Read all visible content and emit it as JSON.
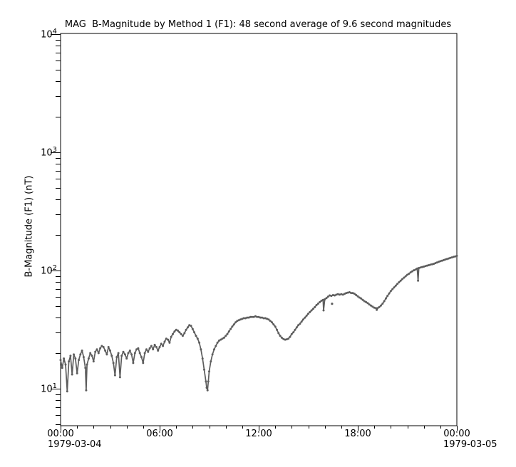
{
  "title": "MAG  B-Magnitude by Method 1 (F1): 48 second average of 9.6 second magnitudes",
  "y_axis": {
    "label": "B-Magnitude (F1) (nT)",
    "ticks": [
      {
        "base": "10",
        "exp": "4"
      },
      {
        "base": "10",
        "exp": "3"
      },
      {
        "base": "10",
        "exp": "2"
      },
      {
        "base": "10",
        "exp": "1"
      }
    ]
  },
  "x_axis": {
    "ticks": [
      "00:00",
      "06:00",
      "12:00",
      "18:00",
      "00:00"
    ],
    "date_left": "1979-03-04",
    "date_right": "1979-03-05"
  },
  "colors": {
    "series": "#5d5d5d",
    "axis": "#000000",
    "background": "#ffffff",
    "text": "#000000"
  },
  "chart_data": {
    "type": "line",
    "title": "MAG  B-Magnitude by Method 1 (F1): 48 second average of 9.6 second magnitudes",
    "ylabel": "B-Magnitude (F1) (nT)",
    "yscale": "log",
    "x_unit": "hours from 1979-03-04 00:00 UT",
    "xlim": [
      0,
      24
    ],
    "ylim": [
      4.9,
      10000
    ],
    "x_major_ticks_hours": [
      0,
      6,
      12,
      18,
      24
    ],
    "x_minor_tick_interval_hours": 1,
    "x_tick_labels": [
      "00:00",
      "06:00",
      "12:00",
      "18:00",
      "00:00"
    ],
    "y_major_ticks": [
      10,
      100,
      1000,
      10000
    ],
    "grid": false,
    "legend": false,
    "marker": "dot",
    "series": [
      {
        "name": "B-Magnitude (F1)",
        "points": [
          [
            0.0,
            17.5
          ],
          [
            0.1,
            15
          ],
          [
            0.2,
            18
          ],
          [
            0.3,
            16
          ],
          [
            0.4,
            9.5
          ],
          [
            0.5,
            17
          ],
          [
            0.6,
            19
          ],
          [
            0.7,
            13.2
          ],
          [
            0.8,
            19.5
          ],
          [
            0.9,
            18
          ],
          [
            1.0,
            13.5
          ],
          [
            1.1,
            17.5
          ],
          [
            1.2,
            19.5
          ],
          [
            1.3,
            21
          ],
          [
            1.4,
            18.5
          ],
          [
            1.5,
            15
          ],
          [
            1.55,
            9.7
          ],
          [
            1.6,
            16
          ],
          [
            1.7,
            18
          ],
          [
            1.8,
            20
          ],
          [
            1.9,
            19
          ],
          [
            2.0,
            17
          ],
          [
            2.1,
            20.5
          ],
          [
            2.2,
            21.5
          ],
          [
            2.3,
            20
          ],
          [
            2.4,
            22
          ],
          [
            2.5,
            23
          ],
          [
            2.6,
            22.5
          ],
          [
            2.7,
            21
          ],
          [
            2.8,
            19.5
          ],
          [
            2.9,
            22.5
          ],
          [
            3.0,
            21
          ],
          [
            3.1,
            19
          ],
          [
            3.2,
            16.5
          ],
          [
            3.3,
            13
          ],
          [
            3.4,
            18.5
          ],
          [
            3.5,
            20
          ],
          [
            3.6,
            12.5
          ],
          [
            3.7,
            19
          ],
          [
            3.8,
            20.5
          ],
          [
            3.9,
            19.5
          ],
          [
            4.0,
            18
          ],
          [
            4.1,
            20
          ],
          [
            4.2,
            21
          ],
          [
            4.3,
            19.5
          ],
          [
            4.4,
            16.5
          ],
          [
            4.5,
            20
          ],
          [
            4.6,
            21.5
          ],
          [
            4.7,
            22
          ],
          [
            4.8,
            20
          ],
          [
            4.9,
            18.5
          ],
          [
            5.0,
            16.5
          ],
          [
            5.1,
            20
          ],
          [
            5.2,
            21.5
          ],
          [
            5.3,
            20.5
          ],
          [
            5.4,
            22
          ],
          [
            5.5,
            23
          ],
          [
            5.6,
            21.5
          ],
          [
            5.7,
            23.5
          ],
          [
            5.8,
            22.5
          ],
          [
            5.9,
            21
          ],
          [
            6.0,
            22.5
          ],
          [
            6.1,
            24
          ],
          [
            6.2,
            23
          ],
          [
            6.3,
            25
          ],
          [
            6.4,
            26.5
          ],
          [
            6.5,
            26
          ],
          [
            6.6,
            24.5
          ],
          [
            6.7,
            27.5
          ],
          [
            6.8,
            29
          ],
          [
            6.9,
            30.5
          ],
          [
            7.0,
            31.5
          ],
          [
            7.1,
            31
          ],
          [
            7.2,
            30
          ],
          [
            7.3,
            29
          ],
          [
            7.4,
            28
          ],
          [
            7.5,
            29.5
          ],
          [
            7.6,
            31.5
          ],
          [
            7.7,
            33
          ],
          [
            7.8,
            34.5
          ],
          [
            7.9,
            34
          ],
          [
            8.0,
            32
          ],
          [
            8.1,
            30
          ],
          [
            8.2,
            28
          ],
          [
            8.3,
            26.5
          ],
          [
            8.4,
            24.5
          ],
          [
            8.5,
            21.5
          ],
          [
            8.6,
            18
          ],
          [
            8.7,
            14.5
          ],
          [
            8.8,
            11.5
          ],
          [
            8.85,
            10.2
          ],
          [
            8.9,
            9.7
          ],
          [
            8.95,
            11.5
          ],
          [
            9.0,
            14
          ],
          [
            9.1,
            17
          ],
          [
            9.2,
            19.5
          ],
          [
            9.3,
            21.5
          ],
          [
            9.4,
            23
          ],
          [
            9.5,
            24.5
          ],
          [
            9.6,
            25.5
          ],
          [
            9.7,
            26
          ],
          [
            9.8,
            26.5
          ],
          [
            9.9,
            27
          ],
          [
            10.0,
            28
          ],
          [
            10.1,
            29
          ],
          [
            10.2,
            30.5
          ],
          [
            10.3,
            32
          ],
          [
            10.4,
            33.5
          ],
          [
            10.5,
            35
          ],
          [
            10.6,
            36.5
          ],
          [
            10.7,
            37.5
          ],
          [
            10.8,
            38
          ],
          [
            10.9,
            38.5
          ],
          [
            11.0,
            39
          ],
          [
            11.1,
            39.5
          ],
          [
            11.2,
            39.5
          ],
          [
            11.3,
            40
          ],
          [
            11.4,
            40
          ],
          [
            11.5,
            40.5
          ],
          [
            11.6,
            40.5
          ],
          [
            11.7,
            40.5
          ],
          [
            11.8,
            41
          ],
          [
            11.9,
            40.5
          ],
          [
            12.0,
            40.5
          ],
          [
            12.1,
            40
          ],
          [
            12.2,
            40
          ],
          [
            12.3,
            39.5
          ],
          [
            12.4,
            39.5
          ],
          [
            12.5,
            39
          ],
          [
            12.6,
            38.5
          ],
          [
            12.7,
            37.5
          ],
          [
            12.8,
            36.5
          ],
          [
            12.9,
            35
          ],
          [
            13.0,
            33.5
          ],
          [
            13.1,
            31.5
          ],
          [
            13.2,
            29.5
          ],
          [
            13.3,
            28
          ],
          [
            13.4,
            27
          ],
          [
            13.5,
            26.3
          ],
          [
            13.6,
            26
          ],
          [
            13.7,
            26.2
          ],
          [
            13.8,
            26.5
          ],
          [
            13.9,
            27.5
          ],
          [
            14.0,
            29
          ],
          [
            14.1,
            30
          ],
          [
            14.2,
            31.5
          ],
          [
            14.3,
            33
          ],
          [
            14.4,
            34.5
          ],
          [
            14.5,
            35.5
          ],
          [
            14.6,
            37
          ],
          [
            14.7,
            38.5
          ],
          [
            14.8,
            40
          ],
          [
            14.9,
            41.5
          ],
          [
            15.0,
            43
          ],
          [
            15.1,
            44.5
          ],
          [
            15.2,
            46
          ],
          [
            15.3,
            47.5
          ],
          [
            15.4,
            49
          ],
          [
            15.5,
            51
          ],
          [
            15.6,
            52.5
          ],
          [
            15.7,
            54
          ],
          [
            15.8,
            55.5
          ],
          [
            15.9,
            56.5
          ],
          [
            15.93,
            46
          ],
          [
            16.0,
            57
          ],
          [
            16.1,
            58.5
          ],
          [
            16.2,
            60
          ],
          [
            16.3,
            61.5
          ],
          [
            16.4,
            61
          ],
          [
            16.5,
            62
          ],
          [
            16.6,
            61.5
          ],
          [
            16.7,
            62.5
          ],
          [
            16.8,
            63
          ],
          [
            16.9,
            62.5
          ],
          [
            17.0,
            63
          ],
          [
            17.1,
            62.5
          ],
          [
            17.2,
            63.5
          ],
          [
            17.3,
            64.5
          ],
          [
            17.4,
            65
          ],
          [
            17.5,
            65.5
          ],
          [
            17.6,
            64.5
          ],
          [
            17.7,
            64.5
          ],
          [
            17.8,
            63.5
          ],
          [
            17.9,
            62
          ],
          [
            18.0,
            60.5
          ],
          [
            18.1,
            59
          ],
          [
            18.2,
            58
          ],
          [
            18.3,
            56.5
          ],
          [
            18.4,
            55
          ],
          [
            18.5,
            54
          ],
          [
            18.6,
            53
          ],
          [
            18.7,
            51.5
          ],
          [
            18.8,
            50.5
          ],
          [
            18.9,
            49.5
          ],
          [
            19.0,
            48.5
          ],
          [
            19.1,
            48
          ],
          [
            19.15,
            46.5
          ],
          [
            19.2,
            48
          ],
          [
            19.3,
            49
          ],
          [
            19.4,
            50.5
          ],
          [
            19.5,
            52.5
          ],
          [
            19.6,
            55
          ],
          [
            19.7,
            58
          ],
          [
            19.8,
            61
          ],
          [
            19.9,
            64
          ],
          [
            20.0,
            67
          ],
          [
            20.1,
            69.5
          ],
          [
            20.2,
            72
          ],
          [
            20.3,
            74.5
          ],
          [
            20.4,
            77
          ],
          [
            20.5,
            79.5
          ],
          [
            20.6,
            82
          ],
          [
            20.7,
            84.5
          ],
          [
            20.8,
            87
          ],
          [
            20.9,
            89.5
          ],
          [
            21.0,
            92
          ],
          [
            21.1,
            94
          ],
          [
            21.2,
            96.5
          ],
          [
            21.3,
            98.5
          ],
          [
            21.4,
            100.5
          ],
          [
            21.5,
            102
          ],
          [
            21.6,
            104
          ],
          [
            21.65,
            82
          ],
          [
            21.7,
            105
          ],
          [
            21.8,
            106
          ],
          [
            21.9,
            107
          ],
          [
            22.0,
            108
          ],
          [
            22.1,
            109
          ],
          [
            22.2,
            110
          ],
          [
            22.3,
            111
          ],
          [
            22.4,
            112
          ],
          [
            22.5,
            113
          ],
          [
            22.6,
            114
          ],
          [
            22.7,
            115.5
          ],
          [
            22.8,
            117
          ],
          [
            22.9,
            118.5
          ],
          [
            23.0,
            120
          ],
          [
            23.1,
            121
          ],
          [
            23.2,
            122.5
          ],
          [
            23.3,
            124
          ],
          [
            23.4,
            125
          ],
          [
            23.5,
            126.5
          ],
          [
            23.6,
            128
          ],
          [
            23.7,
            129
          ],
          [
            23.8,
            130.5
          ],
          [
            23.9,
            131.5
          ],
          [
            24.0,
            133
          ]
        ]
      }
    ],
    "outlier_points": [
      [
        16.44,
        52.3
      ]
    ]
  }
}
